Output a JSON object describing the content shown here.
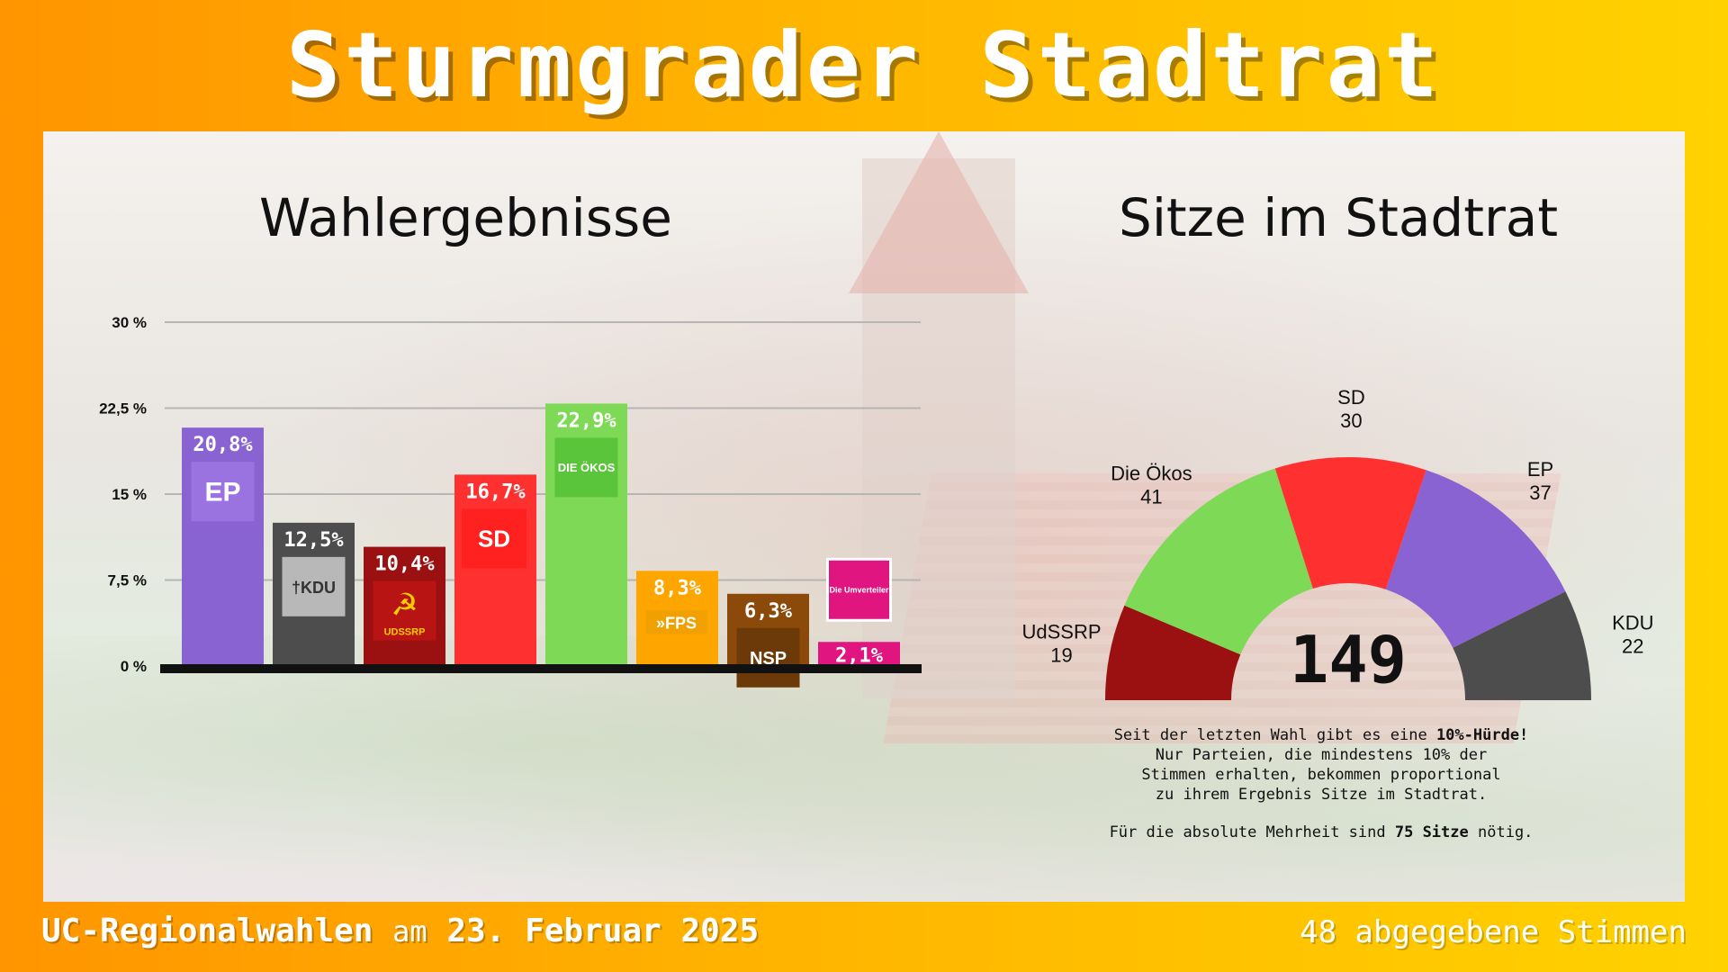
{
  "title": "Sturmgrader Stadtrat",
  "left_title": "Wahlergebnisse",
  "right_title": "Sitze im Stadtrat",
  "footer": {
    "left_part1": "UC-Regionalwahlen",
    "left_part2": "am",
    "left_part3": "23. Februar 2025",
    "right": "48 abgegebene Stimmen"
  },
  "info": {
    "line1_a": "Seit der letzten Wahl gibt es eine",
    "line1_b": "10%-Hürde!",
    "line2": "Nur Parteien, die mindestens 10% der",
    "line3": "Stimmen erhalten, bekommen proportional",
    "line4": "zu ihrem Ergebnis Sitze im Stadtrat.",
    "line5_a": "Für die absolute Mehrheit sind",
    "line5_b": "75 Sitze",
    "line5_c": "nötig."
  },
  "colors": {
    "EP": "#8a63d2",
    "KDU": "#4d4d4d",
    "UdSSRP": "#9b1010",
    "SD": "#ff3030",
    "Die Ökos": "#7ed957",
    "FPS": "#ffa500",
    "NSP": "#8b4a0a",
    "Die Umverteiler": "#e0157f"
  },
  "chart_data": [
    {
      "type": "bar",
      "categories": [
        "EP",
        "KDU",
        "UdSSRP",
        "SD",
        "Die Ökos",
        "FPS",
        "NSP",
        "Die Umverteiler"
      ],
      "values": [
        20.8,
        12.5,
        10.4,
        16.7,
        22.9,
        8.3,
        6.3,
        2.1
      ],
      "value_labels": [
        "20,8%",
        "12,5%",
        "10,4%",
        "16,7%",
        "22,9%",
        "8,3%",
        "6,3%",
        "2,1%"
      ],
      "logo_texts": [
        "EP",
        "KDU",
        "UDSSRP",
        "SD",
        "DIE ÖKOS",
        "FPS",
        "NSP",
        "Die Umverteiler"
      ],
      "yticks": [
        0,
        7.5,
        15,
        22.5,
        30
      ],
      "ytick_labels": [
        "0 %",
        "7,5 %",
        "15 %",
        "22,5 %",
        "30 %"
      ],
      "ylim": [
        0,
        30
      ],
      "grid": true
    },
    {
      "type": "pie",
      "subtype": "half-donut",
      "categories": [
        "UdSSRP",
        "Die Ökos",
        "SD",
        "EP",
        "KDU"
      ],
      "values": [
        19,
        41,
        30,
        37,
        22
      ],
      "total": "149"
    }
  ]
}
